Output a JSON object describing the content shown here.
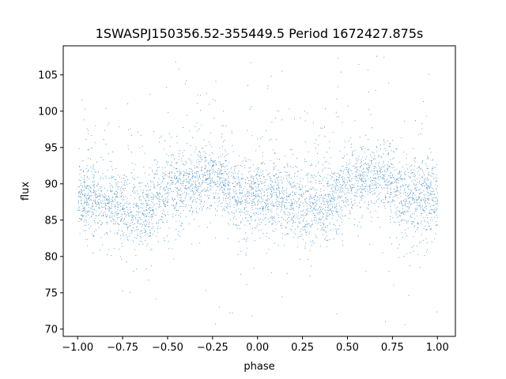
{
  "chart_data": {
    "type": "scatter",
    "title": "1SWASPJ150356.52-355449.5 Period 1672427.875s",
    "xlabel": "phase",
    "ylabel": "flux",
    "xlim": [
      -1.08,
      1.1
    ],
    "ylim": [
      69,
      109
    ],
    "xticks": [
      -1.0,
      -0.75,
      -0.5,
      -0.25,
      0.0,
      0.25,
      0.5,
      0.75,
      1.0
    ],
    "xtick_labels": [
      "−1.00",
      "−0.75",
      "−0.50",
      "−0.25",
      "0.00",
      "0.25",
      "0.50",
      "0.75",
      "1.00"
    ],
    "yticks": [
      70,
      75,
      80,
      85,
      90,
      95,
      100,
      105
    ],
    "ytick_labels": [
      "70",
      "75",
      "80",
      "85",
      "90",
      "95",
      "100",
      "105"
    ],
    "grid": false,
    "marker_color": "#1f77b4",
    "series": [
      {
        "x": [
          -1.0,
          -0.9,
          -0.8,
          -0.7,
          -0.6,
          -0.5,
          -0.4,
          -0.3,
          -0.2,
          -0.1,
          0.0,
          0.1,
          0.2,
          0.3,
          0.4,
          0.5,
          0.6,
          0.7,
          0.8,
          0.9,
          1.0
        ],
        "y_center": [
          88.5,
          88.0,
          87.5,
          86.0,
          87.0,
          89.0,
          90.0,
          91.0,
          90.5,
          88.0,
          88.0,
          88.5,
          87.5,
          87.0,
          87.5,
          89.5,
          91.0,
          91.0,
          88.0,
          88.5,
          88.5
        ],
        "y_lower": [
          83,
          82,
          81,
          79,
          80,
          81,
          83,
          85,
          85,
          82,
          82,
          82,
          81,
          80,
          81,
          83,
          85,
          85,
          82,
          81,
          82
        ],
        "y_upper": [
          95,
          94,
          93,
          92,
          93,
          96,
          97,
          97,
          96,
          95,
          95,
          95,
          94,
          93,
          94,
          96,
          97,
          97,
          95,
          96,
          95
        ]
      }
    ]
  }
}
